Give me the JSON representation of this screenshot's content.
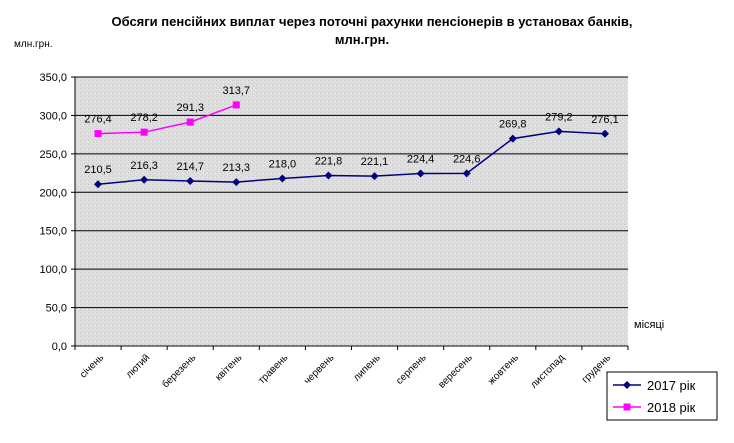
{
  "chart_data": {
    "type": "line",
    "title": "Обсяги пенсійних виплат через поточні рахунки пенсіонерів в установах банків,",
    "subtitle": "млн.грн.",
    "y_label": "млн.грн.",
    "x_label": "місяці",
    "categories": [
      "січень",
      "лютий",
      "березень",
      "квітень",
      "травень",
      "червень",
      "липень",
      "серпень",
      "вересень",
      "жовтень",
      "листопад",
      "грудень"
    ],
    "series": [
      {
        "name": "2017 рік",
        "color": "#000080",
        "marker": "diamond",
        "values": [
          210.5,
          216.3,
          214.7,
          213.3,
          218.0,
          221.8,
          221.1,
          224.4,
          224.6,
          269.8,
          279.2,
          276.1
        ],
        "value_labels": [
          "210,5",
          "216,3",
          "214,7",
          "213,3",
          "218,0",
          "221,8",
          "221,1",
          "224,4",
          "224,6",
          "269,8",
          "279,2",
          "276,1"
        ]
      },
      {
        "name": "2018 рік",
        "color": "#ff00ff",
        "marker": "square",
        "values": [
          276.4,
          278.2,
          291.3,
          313.7,
          null,
          null,
          null,
          null,
          null,
          null,
          null,
          null
        ],
        "value_labels": [
          "276,4",
          "278,2",
          "291,3",
          "313,7",
          null,
          null,
          null,
          null,
          null,
          null,
          null,
          null
        ]
      }
    ],
    "ylim": [
      0,
      350
    ],
    "yticks": [
      {
        "value": 0,
        "label": "0,0"
      },
      {
        "value": 50,
        "label": "50,0"
      },
      {
        "value": 100,
        "label": "100,0"
      },
      {
        "value": 150,
        "label": "150,0"
      },
      {
        "value": 200,
        "label": "200,0"
      },
      {
        "value": 250,
        "label": "250,0"
      },
      {
        "value": 300,
        "label": "300,0"
      },
      {
        "value": 350,
        "label": "350,0"
      }
    ],
    "grid": true,
    "legend": "bottom-right"
  }
}
